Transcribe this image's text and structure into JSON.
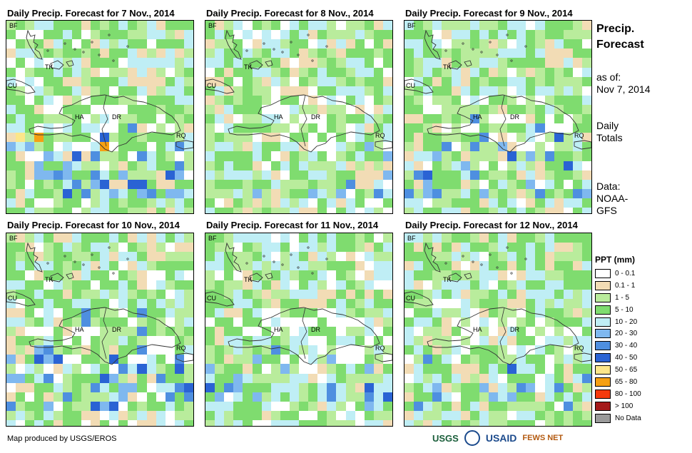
{
  "panels": [
    {
      "title": "Daily Precip. Forecast for 7 Nov., 2014",
      "seed": 7,
      "wet": 2.6
    },
    {
      "title": "Daily Precip. Forecast for 8 Nov., 2014",
      "seed": 8,
      "wet": 0.6
    },
    {
      "title": "Daily Precip. Forecast for 9 Nov., 2014",
      "seed": 9,
      "wet": 1.4
    },
    {
      "title": "Daily Precip. Forecast for 10 Nov., 2014",
      "seed": 10,
      "wet": 1.6
    },
    {
      "title": "Daily Precip. Forecast for 11 Nov., 2014",
      "seed": 11,
      "wet": 1.0
    },
    {
      "title": "Daily Precip. Forecast for 12 Nov., 2014",
      "seed": 12,
      "wet": 0.7
    }
  ],
  "map_labels": {
    "bf": "BF",
    "tk": "TK",
    "cu": "CU",
    "ha": "HA",
    "dr": "DR",
    "rq": "RQ"
  },
  "side": {
    "title_line1": "Precip.",
    "title_line2": "Forecast",
    "asof_line1": "as of:",
    "asof_line2": "Nov 7, 2014",
    "totals_line1": "Daily",
    "totals_line2": "Totals",
    "data_line1": "Data:",
    "data_line2": "NOAA-",
    "data_line3": "GFS"
  },
  "legend": {
    "title": "PPT (mm)",
    "items": [
      {
        "label": "0 - 0.1",
        "color": "#ffffff"
      },
      {
        "label": "0.1 - 1",
        "color": "#f2dcb5"
      },
      {
        "label": "1 - 5",
        "color": "#b9ec9c"
      },
      {
        "label": "5 - 10",
        "color": "#7fdc6f"
      },
      {
        "label": "10 - 20",
        "color": "#bfeef5"
      },
      {
        "label": "20 - 30",
        "color": "#7fb8ef"
      },
      {
        "label": "30 - 40",
        "color": "#4e8fe0"
      },
      {
        "label": "40 - 50",
        "color": "#2a63d4"
      },
      {
        "label": "50 - 65",
        "color": "#fce68a"
      },
      {
        "label": "65 - 80",
        "color": "#f5a013"
      },
      {
        "label": "80 - 100",
        "color": "#f53a0c"
      },
      {
        "label": "> 100",
        "color": "#a41a1a"
      },
      {
        "label": "No Data",
        "color": "#9a9a9a"
      }
    ]
  },
  "footer": {
    "credit": "Map produced by USGS/EROS"
  },
  "logos": {
    "usgs": "USGS",
    "usaid": "USAID",
    "fews": "FEWS NET"
  }
}
